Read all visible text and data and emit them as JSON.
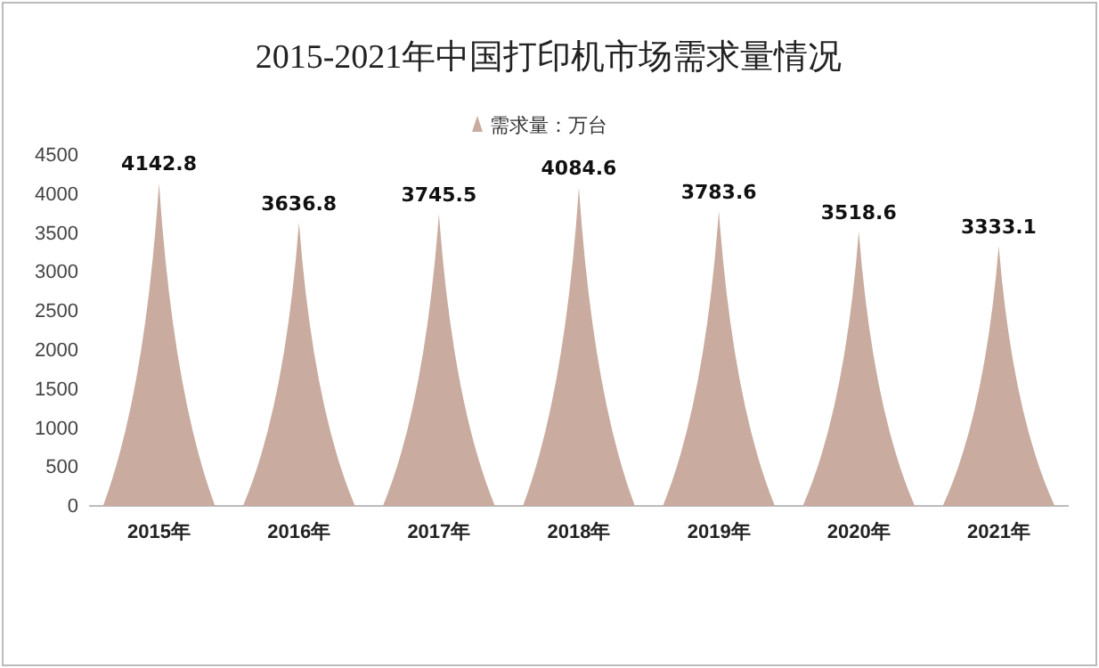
{
  "chart_data": {
    "type": "bar",
    "title": "2015-2021年中国打印机市场需求量情况",
    "categories": [
      "2015年",
      "2016年",
      "2017年",
      "2018年",
      "2019年",
      "2020年",
      "2021年"
    ],
    "series": [
      {
        "name": "需求量：万台",
        "color": "#c9ab9f",
        "values": [
          4142.8,
          3636.8,
          3745.5,
          4084.6,
          3783.6,
          3518.6,
          3333.1
        ]
      }
    ],
    "ylim": [
      0,
      4500
    ],
    "yticks": [
      0,
      500,
      1000,
      1500,
      2000,
      2500,
      3000,
      3500,
      4000,
      4500
    ],
    "data_labels": true,
    "legend": "top",
    "grid": false
  }
}
